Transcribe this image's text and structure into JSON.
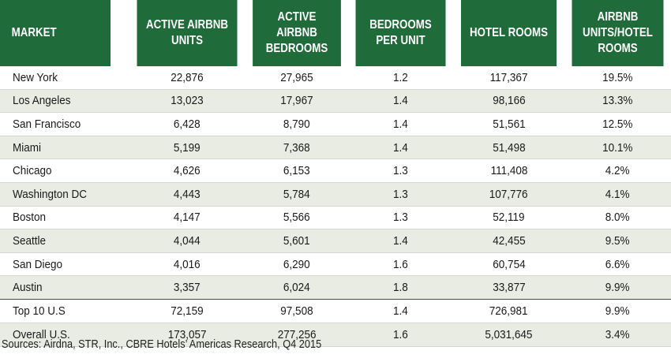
{
  "table": {
    "headers": [
      "MARKET",
      "ACTIVE AIRBNB UNITS",
      "ACTIVE AIRBNB BEDROOMS",
      "BEDROOMS PER UNIT",
      "HOTEL ROOMS",
      "AIRBNB UNITS/HOTEL ROOMS"
    ],
    "rows": [
      [
        "New York",
        "22,876",
        "27,965",
        "1.2",
        "117,367",
        "19.5%"
      ],
      [
        "Los Angeles",
        "13,023",
        "17,967",
        "1.4",
        "98,166",
        "13.3%"
      ],
      [
        "San Francisco",
        "6,428",
        "8,790",
        "1.4",
        "51,561",
        "12.5%"
      ],
      [
        "Miami",
        "5,199",
        "7,368",
        "1.4",
        "51,498",
        "10.1%"
      ],
      [
        "Chicago",
        "4,626",
        "6,153",
        "1.3",
        "111,408",
        "4.2%"
      ],
      [
        "Washington DC",
        "4,443",
        "5,784",
        "1.3",
        "107,776",
        "4.1%"
      ],
      [
        "Boston",
        "4,147",
        "5,566",
        "1.3",
        "52,119",
        "8.0%"
      ],
      [
        "Seattle",
        "4,044",
        "5,601",
        "1.4",
        "42,455",
        "9.5%"
      ],
      [
        "San Diego",
        "4,016",
        "6,290",
        "1.6",
        "60,754",
        "6.6%"
      ],
      [
        "Austin",
        "3,357",
        "6,024",
        "1.8",
        "33,877",
        "9.9%"
      ]
    ],
    "totals": [
      [
        "Top 10 U.S",
        "72,159",
        "97,508",
        "1.4",
        "726,981",
        "9.9%"
      ],
      [
        "Overall U.S.",
        "173,057",
        "277,256",
        "1.6",
        "5,031,645",
        "3.4%"
      ]
    ]
  },
  "source": "Sources: Airdna, STR, Inc., CBRE Hotels’ Americas Research, Q4 2015",
  "colors": {
    "header_bg": "#1f6b3a",
    "header_text": "#ffffff",
    "alt_row_bg": "#e8ece3"
  }
}
